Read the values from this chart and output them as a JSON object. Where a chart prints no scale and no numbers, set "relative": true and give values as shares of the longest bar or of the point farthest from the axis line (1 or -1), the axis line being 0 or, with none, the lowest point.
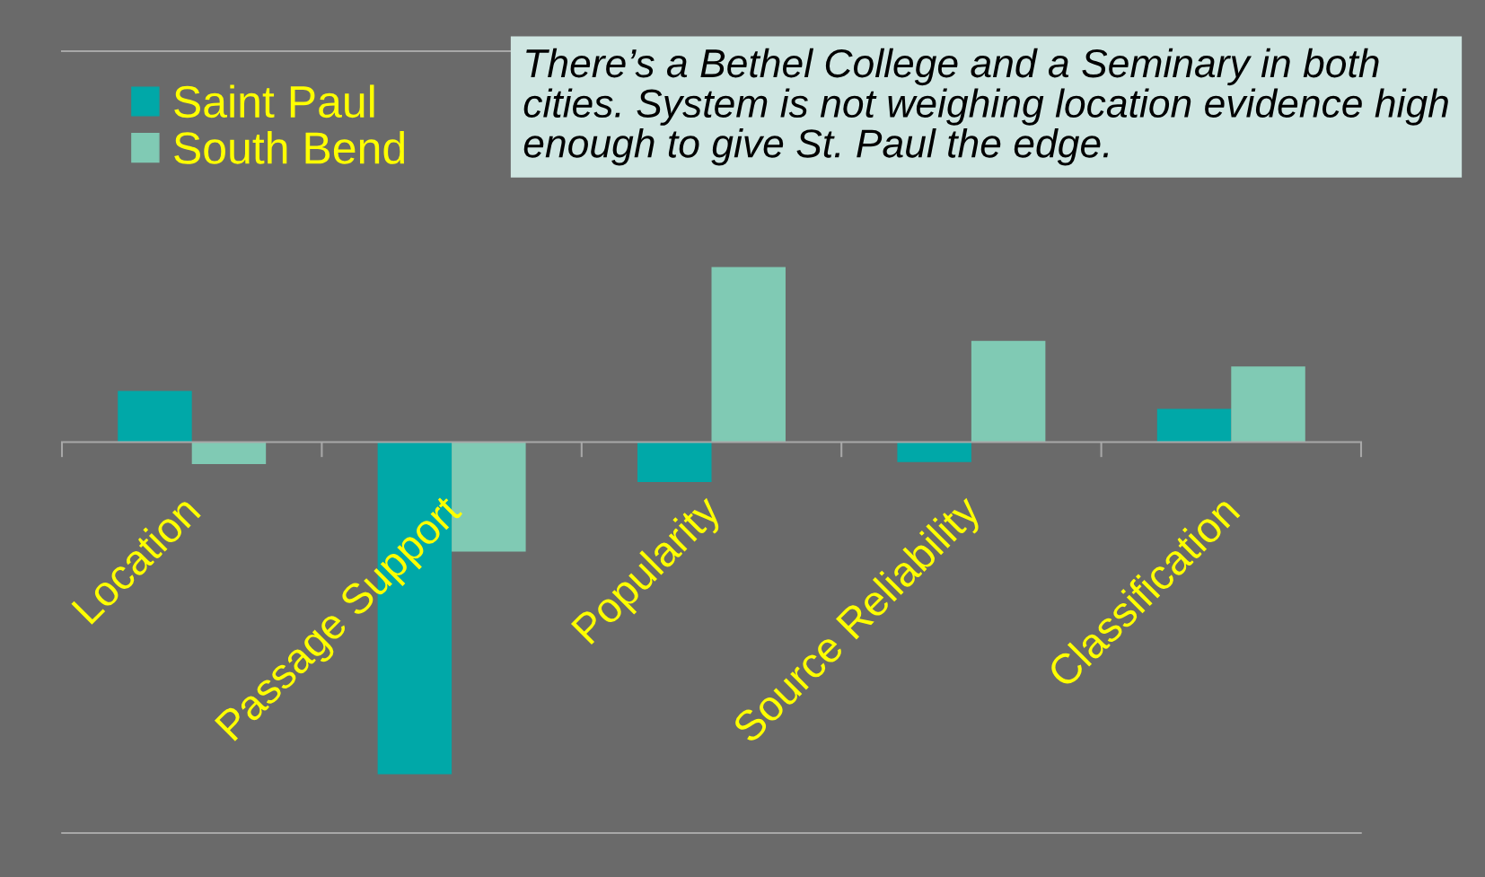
{
  "chart_data": {
    "type": "bar",
    "relative": true,
    "categories": [
      "Location",
      "Passage Support",
      "Popularity",
      "Source Reliability",
      "Classification"
    ],
    "series": [
      {
        "name": "Saint Paul",
        "color": "#00a8a8",
        "values": [
          0.154,
          -1,
          -0.12,
          -0.06,
          0.1
        ]
      },
      {
        "name": "South Bend",
        "color": "#80cab4",
        "values": [
          -0.066,
          -0.33,
          0.527,
          0.305,
          0.228
        ]
      }
    ],
    "legend": "top left",
    "annotations": [
      "There’s a Bethel College and a Seminary in both cities. System is not weighing location evidence high enough to give St. Paul the edge."
    ]
  }
}
